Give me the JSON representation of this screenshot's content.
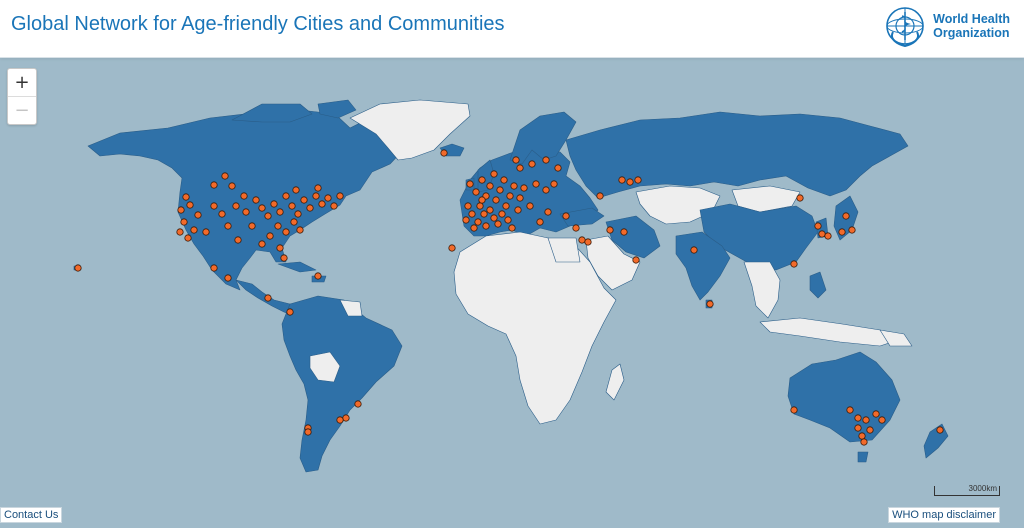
{
  "header": {
    "title": "Global Network for Age-friendly Cities and Communities",
    "logo_line1": "World Health",
    "logo_line2": "Organization"
  },
  "zoom": {
    "in_label": "+",
    "out_label": "−"
  },
  "footer": {
    "contact_label": "Contact Us",
    "disclaimer_label": "WHO map disclaimer",
    "scale_label": "3000km"
  },
  "colors": {
    "ocean": "#9fbac9",
    "member_country": "#2f71a8",
    "non_member_country": "#eeeeee",
    "city_marker": "#f26a2a",
    "title": "#1a75b8"
  },
  "icons": {
    "logo": "who-emblem-icon"
  }
}
